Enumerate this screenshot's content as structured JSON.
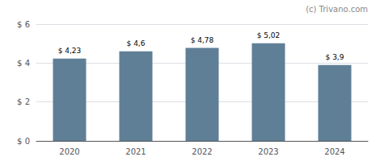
{
  "chart_data": {
    "type": "bar",
    "categories": [
      "2020",
      "2021",
      "2022",
      "2023",
      "2024"
    ],
    "values": [
      4.23,
      4.6,
      4.78,
      5.02,
      3.9
    ],
    "value_labels": [
      "$ 4,23",
      "$ 4,6",
      "$ 4,78",
      "$ 5,02",
      "$ 3,9"
    ],
    "data_labels": true,
    "color": "#5f7f96",
    "ylim": [
      0,
      6
    ],
    "yticks": [
      {
        "value": 0,
        "label": "$ 0"
      },
      {
        "value": 2,
        "label": "$ 2"
      },
      {
        "value": 4,
        "label": "$ 4"
      },
      {
        "value": 6,
        "label": "$ 6"
      }
    ],
    "grid": true,
    "annotations": [
      "(c) Trivano.com"
    ]
  }
}
